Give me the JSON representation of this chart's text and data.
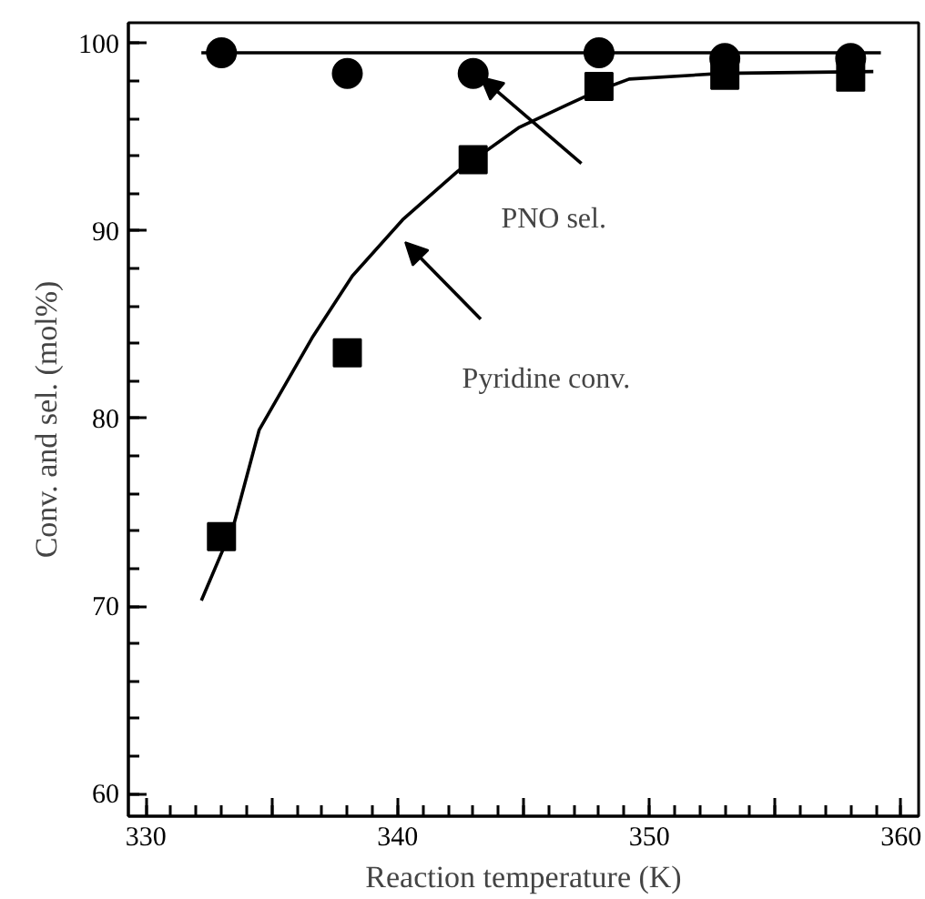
{
  "chart_data": {
    "type": "scatter",
    "xlabel": "Reaction temperature (K)",
    "ylabel": "Conv. and sel. (mol%)",
    "xlim": [
      329.3,
      360.7
    ],
    "ylim": [
      58.8,
      101.1
    ],
    "xticks": [
      330,
      {
        "value": 335,
        "label": null
      },
      340,
      {
        "value": 345,
        "label": null
      },
      350,
      {
        "value": 355,
        "label": null
      },
      360
    ],
    "yticks": [
      60,
      70,
      80,
      90,
      100
    ],
    "grid": false,
    "series": [
      {
        "marker": "circle",
        "color": "#000000",
        "x": [
          333,
          338,
          343,
          348,
          353,
          358
        ],
        "values": [
          99.5,
          98.4,
          98.4,
          99.5,
          99.2,
          99.2
        ]
      },
      {
        "marker": "square",
        "color": "#000000",
        "x": [
          333,
          338,
          343,
          348,
          353,
          358
        ],
        "values": [
          73.7,
          83.5,
          93.8,
          97.7,
          98.3,
          98.2
        ]
      },
      {
        "type": "line",
        "marker": "none",
        "line_style": "solid",
        "color": "#000000",
        "x": [
          332.2,
          359.2
        ],
        "values": [
          99.5,
          99.5
        ]
      },
      {
        "type": "line",
        "marker": "none",
        "line_style": "solid",
        "color": "#000000",
        "x": [
          332.2,
          333.5,
          334.5,
          336.6,
          338.2,
          340.2,
          342.4,
          344.8,
          346.7,
          348,
          349.2,
          352.9,
          358.9
        ],
        "values": [
          70.3,
          74.4,
          79.4,
          84.3,
          87.6,
          90.6,
          93.2,
          95.5,
          96.7,
          97.5,
          98.1,
          98.4,
          98.5
        ]
      }
    ],
    "annotations": [
      "PNO sel.",
      "Pyridine conv."
    ]
  }
}
